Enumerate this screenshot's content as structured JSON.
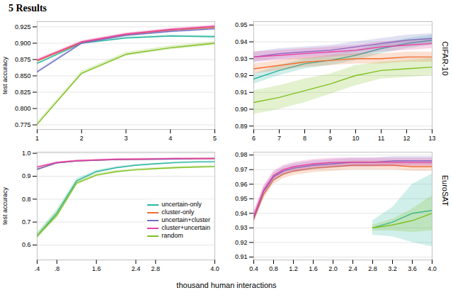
{
  "title": "5 Results",
  "xlabel": "thousand human interactions",
  "chart_data": [
    {
      "type": "line",
      "ylabel": "test accuracy",
      "grid": true,
      "x": [
        1,
        2,
        3,
        4,
        5
      ],
      "xlim": [
        1,
        5
      ],
      "xticks": [
        1,
        2,
        3,
        4,
        5
      ],
      "ylim": [
        0.768,
        0.933
      ],
      "yticks": [
        0.775,
        {
          "value": 0.8,
          "label": "0.800"
        },
        0.825,
        {
          "value": 0.85,
          "label": "0.850"
        },
        0.875,
        {
          "value": 0.9,
          "label": "0.900"
        },
        0.925
      ],
      "series": [
        {
          "name": "uncertain-only",
          "color": "#2ab5a0",
          "values": [
            0.869,
            0.9,
            0.908,
            0.911,
            0.91
          ],
          "std": [
            0.002,
            0.002,
            0.002,
            0.002,
            0.002
          ]
        },
        {
          "name": "cluster-only",
          "color": "#f07030",
          "values": [
            0.873,
            0.901,
            0.913,
            0.92,
            0.924
          ],
          "std": [
            0.002,
            0.002,
            0.002,
            0.002,
            0.002
          ]
        },
        {
          "name": "uncertain+cluster",
          "color": "#7070c8",
          "values": [
            0.856,
            0.9,
            0.912,
            0.918,
            0.922
          ],
          "std": [
            0.002,
            0.002,
            0.002,
            0.002,
            0.002
          ]
        },
        {
          "name": "cluster+uncertain",
          "color": "#e840a0",
          "values": [
            0.874,
            0.902,
            0.914,
            0.921,
            0.926
          ],
          "std": [
            0.002,
            0.002,
            0.002,
            0.002,
            0.002
          ]
        },
        {
          "name": "random",
          "color": "#80c020",
          "values": [
            0.776,
            0.854,
            0.883,
            0.893,
            0.9
          ],
          "std": [
            0.003,
            0.003,
            0.003,
            0.003,
            0.003
          ]
        }
      ]
    },
    {
      "type": "line",
      "title": "CIFAR-10",
      "grid": true,
      "x": [
        6,
        7,
        8,
        9,
        10,
        11,
        12,
        13
      ],
      "xlim": [
        6,
        13
      ],
      "xticks": [
        6,
        7,
        8,
        9,
        10,
        11,
        12,
        13
      ],
      "ylim": [
        0.888,
        0.952
      ],
      "yticks": [
        0.89,
        {
          "value": 0.9,
          "label": "0.90"
        },
        0.91,
        0.92,
        0.93,
        0.94,
        0.95
      ],
      "series": [
        {
          "name": "uncertain-only",
          "color": "#2ab5a0",
          "values": [
            0.918,
            0.923,
            0.927,
            0.929,
            0.932,
            0.936,
            0.939,
            0.941
          ],
          "std": [
            0.003,
            0.003,
            0.003,
            0.003,
            0.003,
            0.003,
            0.003,
            0.003
          ]
        },
        {
          "name": "cluster-only",
          "color": "#f07030",
          "values": [
            0.924,
            0.926,
            0.928,
            0.929,
            0.93,
            0.93,
            0.931,
            0.931
          ],
          "std": [
            0.003,
            0.003,
            0.003,
            0.003,
            0.003,
            0.003,
            0.003,
            0.003
          ]
        },
        {
          "name": "uncertain+cluster",
          "color": "#7070c8",
          "values": [
            0.931,
            0.933,
            0.934,
            0.935,
            0.937,
            0.939,
            0.941,
            0.942
          ],
          "std": [
            0.003,
            0.003,
            0.003,
            0.003,
            0.003,
            0.003,
            0.003,
            0.003
          ]
        },
        {
          "name": "cluster+uncertain",
          "color": "#e840a0",
          "values": [
            0.931,
            0.932,
            0.933,
            0.934,
            0.935,
            0.937,
            0.938,
            0.939
          ],
          "std": [
            0.003,
            0.003,
            0.003,
            0.003,
            0.003,
            0.003,
            0.003,
            0.003
          ]
        },
        {
          "name": "random",
          "color": "#80c020",
          "values": [
            0.904,
            0.907,
            0.911,
            0.915,
            0.92,
            0.923,
            0.924,
            0.925
          ],
          "std": [
            0.007,
            0.007,
            0.007,
            0.006,
            0.006,
            0.005,
            0.005,
            0.005
          ]
        }
      ]
    },
    {
      "type": "line",
      "ylabel": "test accuracy",
      "grid": true,
      "legend": "right",
      "x": [
        0.4,
        0.8,
        1.2,
        1.6,
        2.0,
        2.4,
        2.8,
        3.2,
        3.6,
        4.0
      ],
      "xlim": [
        0.4,
        4
      ],
      "xticks": [
        {
          "value": 0.4,
          "label": ".4"
        },
        {
          "value": 0.8,
          "label": ".8"
        },
        1.6,
        2.4,
        2.8,
        {
          "value": 4,
          "label": "4.0"
        }
      ],
      "ylim": [
        0.535,
        1.005
      ],
      "yticks": [
        0.6,
        0.7,
        0.8,
        0.9,
        {
          "value": 1,
          "label": "1.0"
        }
      ],
      "series": [
        {
          "name": "uncertain-only",
          "color": "#2ab5a0",
          "values": [
            0.64,
            0.74,
            0.88,
            0.92,
            0.937,
            0.948,
            0.954,
            0.959,
            0.962,
            0.963
          ],
          "std": [
            0.012,
            0.015,
            0.01,
            0.007,
            0.005,
            0.004,
            0.004,
            0.004,
            0.004,
            0.004
          ]
        },
        {
          "name": "cluster-only",
          "color": "#f07030",
          "values": [
            0.93,
            0.958,
            0.966,
            0.969,
            0.972,
            0.973,
            0.974,
            0.975,
            0.976,
            0.976
          ],
          "std": [
            0.003,
            0.003,
            0.003,
            0.003,
            0.003,
            0.003,
            0.003,
            0.003,
            0.003,
            0.003
          ]
        },
        {
          "name": "uncertain+cluster",
          "color": "#7070c8",
          "values": [
            0.93,
            0.958,
            0.966,
            0.969,
            0.972,
            0.973,
            0.974,
            0.975,
            0.976,
            0.977
          ],
          "std": [
            0.003,
            0.003,
            0.003,
            0.003,
            0.003,
            0.003,
            0.003,
            0.003,
            0.003,
            0.003
          ]
        },
        {
          "name": "cluster+uncertain",
          "color": "#e840a0",
          "values": [
            0.94,
            0.96,
            0.968,
            0.971,
            0.974,
            0.975,
            0.976,
            0.977,
            0.977,
            0.977
          ],
          "std": [
            0.003,
            0.003,
            0.003,
            0.003,
            0.003,
            0.003,
            0.003,
            0.003,
            0.003,
            0.003
          ]
        },
        {
          "name": "random",
          "color": "#80c020",
          "values": [
            0.64,
            0.73,
            0.87,
            0.905,
            0.92,
            0.928,
            0.933,
            0.937,
            0.94,
            0.942
          ],
          "std": [
            0.012,
            0.015,
            0.01,
            0.007,
            0.006,
            0.005,
            0.005,
            0.005,
            0.005,
            0.005
          ]
        }
      ]
    },
    {
      "type": "line",
      "title": "EuroSAT",
      "grid": true,
      "xlim": [
        0.4,
        4
      ],
      "xticks": [
        0.4,
        0.8,
        1.2,
        1.6,
        {
          "value": 2,
          "label": "2.0"
        },
        2.4,
        2.8,
        3.2,
        3.6,
        {
          "value": 4,
          "label": "4.0"
        }
      ],
      "ylim": [
        0.908,
        0.982
      ],
      "yticks": [
        0.91,
        0.92,
        0.93,
        0.94,
        0.95,
        0.96,
        0.97,
        0.98
      ],
      "series": [
        {
          "name": "cluster-only",
          "color": "#f07030",
          "x": [
            0.4,
            0.6,
            0.8,
            1.0,
            1.2,
            1.6,
            2.0,
            2.4,
            2.8,
            3.2,
            3.6,
            4.0
          ],
          "values": [
            0.936,
            0.953,
            0.963,
            0.967,
            0.969,
            0.971,
            0.972,
            0.973,
            0.973,
            0.973,
            0.972,
            0.972
          ],
          "std": [
            0.003,
            0.003,
            0.003,
            0.003,
            0.003,
            0.003,
            0.003,
            0.003,
            0.003,
            0.003,
            0.003,
            0.003
          ]
        },
        {
          "name": "uncertain+cluster",
          "color": "#7070c8",
          "x": [
            0.4,
            0.6,
            0.8,
            1.0,
            1.2,
            1.6,
            2.0,
            2.4,
            2.8,
            3.2,
            3.6,
            4.0
          ],
          "values": [
            0.937,
            0.955,
            0.965,
            0.969,
            0.971,
            0.973,
            0.974,
            0.975,
            0.975,
            0.976,
            0.976,
            0.976
          ],
          "std": [
            0.003,
            0.003,
            0.003,
            0.003,
            0.003,
            0.003,
            0.003,
            0.003,
            0.003,
            0.003,
            0.003,
            0.003
          ]
        },
        {
          "name": "cluster+uncertain",
          "color": "#e840a0",
          "x": [
            0.4,
            0.6,
            0.8,
            1.0,
            1.2,
            1.6,
            2.0,
            2.4,
            2.8,
            3.2,
            3.6,
            4.0
          ],
          "values": [
            0.938,
            0.956,
            0.966,
            0.97,
            0.972,
            0.974,
            0.975,
            0.975,
            0.975,
            0.975,
            0.975,
            0.975
          ],
          "std": [
            0.003,
            0.003,
            0.003,
            0.003,
            0.003,
            0.003,
            0.003,
            0.003,
            0.003,
            0.003,
            0.003,
            0.003
          ]
        },
        {
          "name": "uncertain-only",
          "color": "#2ab5a0",
          "x": [
            2.8,
            3.2,
            3.6,
            4.0
          ],
          "values": [
            0.93,
            0.934,
            0.94,
            0.942
          ],
          "std": [
            0.005,
            0.01,
            0.02,
            0.025
          ]
        },
        {
          "name": "random",
          "color": "#80c020",
          "x": [
            2.8,
            3.2,
            3.6,
            4.0
          ],
          "values": [
            0.93,
            0.932,
            0.935,
            0.94
          ],
          "std": [
            0.002,
            0.004,
            0.008,
            0.012
          ]
        }
      ]
    }
  ]
}
